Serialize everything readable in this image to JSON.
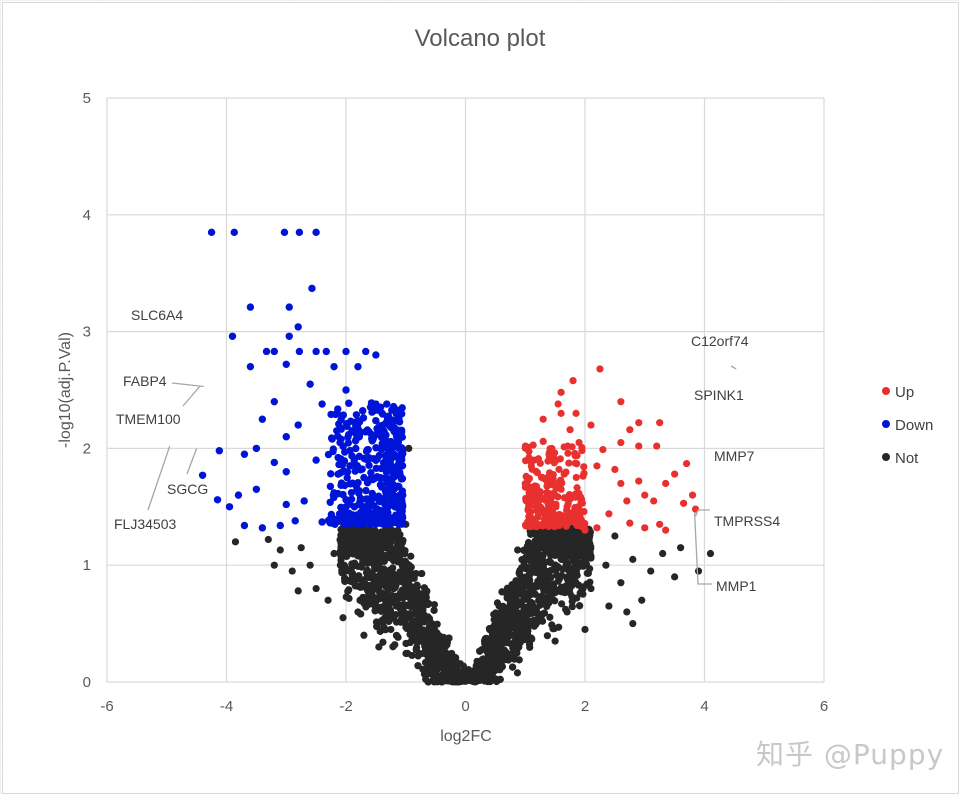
{
  "chart_data": {
    "type": "scatter",
    "title": "Volcano plot",
    "xlabel": "log2FC",
    "ylabel": "-log10(adj.P.Val)",
    "xlim": [
      -6,
      6
    ],
    "ylim": [
      0,
      5
    ],
    "xticks": [
      -6,
      -4,
      -2,
      0,
      2,
      4,
      6
    ],
    "yticks": [
      0,
      1,
      2,
      3,
      4,
      5
    ],
    "grid": true,
    "legend_position": "right",
    "series": [
      {
        "name": "Up",
        "color": "#e8302f"
      },
      {
        "name": "Down",
        "color": "#0014d8"
      },
      {
        "name": "Not",
        "color": "#262626"
      }
    ],
    "down_points": [
      [
        -4.25,
        3.85
      ],
      [
        -3.87,
        3.85
      ],
      [
        -3.03,
        3.85
      ],
      [
        -2.78,
        3.85
      ],
      [
        -2.5,
        3.85
      ],
      [
        -2.57,
        3.37
      ],
      [
        -3.6,
        3.21
      ],
      [
        -2.95,
        3.21
      ],
      [
        -2.8,
        3.04
      ],
      [
        -3.9,
        2.96
      ],
      [
        -2.95,
        2.96
      ],
      [
        -3.33,
        2.83
      ],
      [
        -3.2,
        2.83
      ],
      [
        -2.78,
        2.83
      ],
      [
        -2.5,
        2.83
      ],
      [
        -2.33,
        2.83
      ],
      [
        -2.0,
        2.83
      ],
      [
        -1.67,
        2.83
      ],
      [
        -1.5,
        2.8
      ],
      [
        -3.0,
        2.72
      ],
      [
        -3.6,
        2.7
      ],
      [
        -2.2,
        2.7
      ],
      [
        -1.8,
        2.7
      ],
      [
        -2.6,
        2.55
      ],
      [
        -2.0,
        2.5
      ],
      [
        -3.2,
        2.4
      ],
      [
        -2.4,
        2.38
      ],
      [
        -1.5,
        2.38
      ],
      [
        -1.1,
        2.3
      ],
      [
        -3.4,
        2.25
      ],
      [
        -2.8,
        2.2
      ],
      [
        -1.9,
        2.15
      ],
      [
        -3.0,
        2.1
      ],
      [
        -2.1,
        2.05
      ],
      [
        -1.3,
        2.0
      ],
      [
        -4.12,
        1.98
      ],
      [
        -3.7,
        1.95
      ],
      [
        -2.5,
        1.9
      ],
      [
        -4.4,
        1.77
      ],
      [
        -3.0,
        1.8
      ],
      [
        -1.7,
        1.75
      ],
      [
        -4.15,
        1.56
      ],
      [
        -3.8,
        1.6
      ],
      [
        -2.7,
        1.55
      ],
      [
        -2.0,
        1.5
      ],
      [
        -3.7,
        1.34
      ],
      [
        -3.4,
        1.32
      ],
      [
        -3.1,
        1.34
      ],
      [
        -2.85,
        1.38
      ],
      [
        -2.4,
        1.37
      ],
      [
        -2.25,
        1.4
      ],
      [
        -3.95,
        1.5
      ],
      [
        -3.5,
        1.65
      ],
      [
        -3.0,
        1.52
      ],
      [
        -2.2,
        1.62
      ],
      [
        -1.3,
        1.45
      ],
      [
        -1.6,
        1.35
      ],
      [
        -1.1,
        1.6
      ],
      [
        -3.5,
        2.0
      ],
      [
        -3.2,
        1.88
      ]
    ],
    "up_points": [
      [
        2.25,
        2.68
      ],
      [
        1.8,
        2.58
      ],
      [
        1.6,
        2.48
      ],
      [
        1.55,
        2.38
      ],
      [
        1.6,
        2.3
      ],
      [
        1.85,
        2.3
      ],
      [
        2.6,
        2.4
      ],
      [
        1.3,
        2.25
      ],
      [
        2.1,
        2.2
      ],
      [
        2.75,
        2.16
      ],
      [
        3.25,
        2.22
      ],
      [
        2.9,
        2.22
      ],
      [
        1.75,
        2.16
      ],
      [
        1.3,
        2.06
      ],
      [
        1.9,
        2.05
      ],
      [
        2.6,
        2.05
      ],
      [
        3.2,
        2.02
      ],
      [
        2.3,
        1.99
      ],
      [
        2.9,
        2.02
      ],
      [
        2.2,
        1.85
      ],
      [
        1.15,
        1.9
      ],
      [
        2.5,
        1.82
      ],
      [
        3.35,
        1.7
      ],
      [
        2.9,
        1.72
      ],
      [
        2.6,
        1.7
      ],
      [
        3.7,
        1.87
      ],
      [
        3.5,
        1.78
      ],
      [
        3.0,
        1.6
      ],
      [
        2.7,
        1.55
      ],
      [
        3.15,
        1.55
      ],
      [
        3.8,
        1.6
      ],
      [
        3.85,
        1.48
      ],
      [
        2.75,
        1.36
      ],
      [
        3.25,
        1.35
      ],
      [
        3.0,
        1.32
      ],
      [
        3.35,
        1.3
      ],
      [
        3.65,
        1.53
      ],
      [
        2.2,
        1.32
      ],
      [
        2.0,
        1.3
      ],
      [
        1.9,
        1.42
      ],
      [
        2.4,
        1.44
      ],
      [
        1.7,
        1.5
      ],
      [
        1.4,
        1.5
      ],
      [
        1.2,
        1.65
      ],
      [
        1.6,
        1.65
      ]
    ],
    "not_points": [
      [
        -3.85,
        1.2
      ],
      [
        -3.3,
        1.22
      ],
      [
        -3.1,
        1.13
      ],
      [
        -3.2,
        1.0
      ],
      [
        -2.75,
        1.15
      ],
      [
        -2.9,
        0.95
      ],
      [
        -2.8,
        0.78
      ],
      [
        -2.6,
        1.0
      ],
      [
        -2.5,
        0.8
      ],
      [
        -2.3,
        0.7
      ],
      [
        -2.2,
        1.1
      ],
      [
        -2.0,
        0.95
      ],
      [
        -2.05,
        0.55
      ],
      [
        -1.8,
        0.6
      ],
      [
        -1.6,
        0.75
      ],
      [
        -1.4,
        1.05
      ],
      [
        -1.2,
        1.25
      ],
      [
        -1.0,
        1.35
      ],
      [
        -0.95,
        2.0
      ],
      [
        -1.25,
        0.45
      ],
      [
        -1.7,
        0.4
      ],
      [
        -1.45,
        0.3
      ],
      [
        1.05,
        1.48
      ],
      [
        4.1,
        1.1
      ],
      [
        3.9,
        0.95
      ],
      [
        3.6,
        1.15
      ],
      [
        3.3,
        1.1
      ],
      [
        3.1,
        0.95
      ],
      [
        2.8,
        1.05
      ],
      [
        2.6,
        0.85
      ],
      [
        2.95,
        0.7
      ],
      [
        2.7,
        0.6
      ],
      [
        2.1,
        0.8
      ],
      [
        2.35,
        1.0
      ],
      [
        2.5,
        1.25
      ],
      [
        1.8,
        1.2
      ],
      [
        1.7,
        0.6
      ],
      [
        1.5,
        0.35
      ],
      [
        2.0,
        0.45
      ],
      [
        2.4,
        0.65
      ],
      [
        3.5,
        0.9
      ],
      [
        2.8,
        0.5
      ]
    ],
    "not_cloud": {
      "slope": 1.25,
      "width": 0.35
    },
    "annotations": [
      {
        "label": "SLC6A4",
        "x": -5.0,
        "y": 2.86,
        "leader": false
      },
      {
        "label": "FABP4",
        "x": -4.38,
        "y": 2.53,
        "leader": true
      },
      {
        "label": "TMEM100",
        "x": -4.45,
        "y": 2.53,
        "leader": true
      },
      {
        "label": "SGCG",
        "x": -4.5,
        "y": 2.0,
        "leader": true
      },
      {
        "label": "FLJ34503",
        "x": -4.95,
        "y": 2.02,
        "leader": true
      },
      {
        "label": "C12orf74",
        "x": 4.53,
        "y": 2.68,
        "leader": true
      },
      {
        "label": "SPINK1",
        "x": 4.75,
        "y": 2.3,
        "leader": false
      },
      {
        "label": "MMP7",
        "x": 3.95,
        "y": 2.08,
        "leader": false
      },
      {
        "label": "TMPRSS4",
        "x": 3.85,
        "y": 1.42,
        "leader": true
      },
      {
        "label": "MMP1",
        "x": 3.8,
        "y": 1.47,
        "leader": true
      }
    ]
  },
  "watermark": "知乎 @Puppy"
}
